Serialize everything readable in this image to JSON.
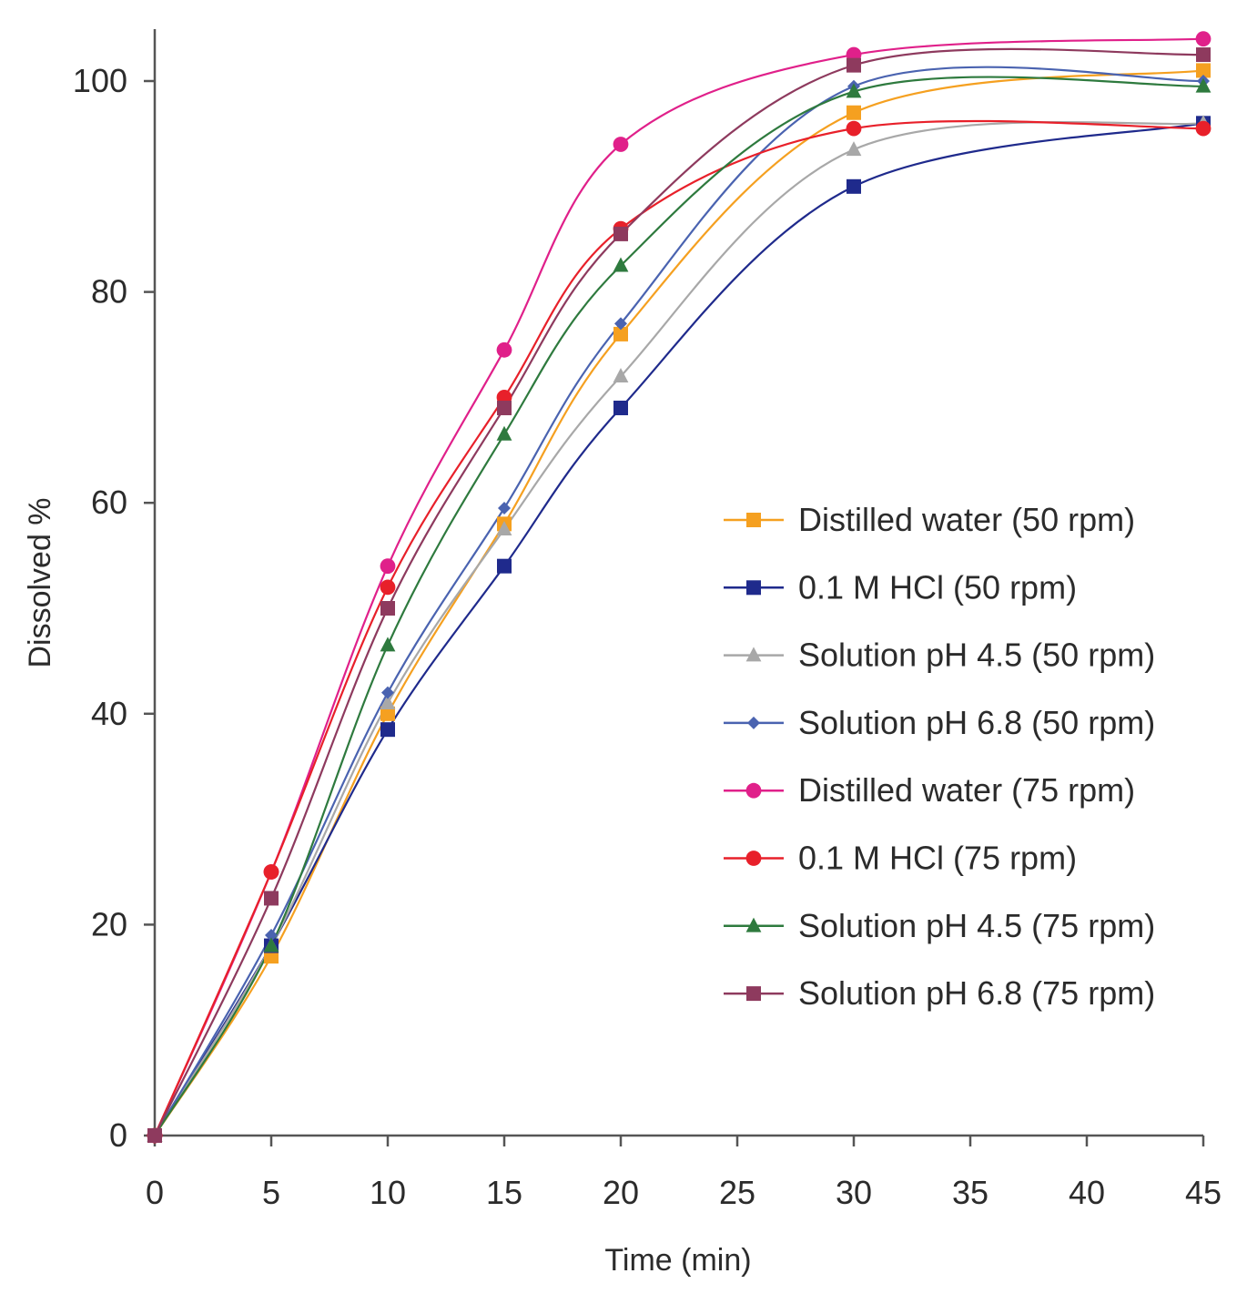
{
  "chart_data": {
    "type": "line",
    "xlabel": "Time (min)",
    "ylabel": "Dissolved %",
    "xlim": [
      0,
      45
    ],
    "ylim": [
      0,
      100
    ],
    "xticks": [
      0,
      5,
      10,
      15,
      20,
      25,
      30,
      35,
      40,
      45
    ],
    "yticks": [
      0,
      20,
      40,
      60,
      80,
      100
    ],
    "grid": false,
    "legend_position": "right",
    "x": [
      0,
      5,
      10,
      15,
      20,
      30,
      45
    ],
    "series": [
      {
        "name": "Distilled water (50 rpm)",
        "color": "#F5A020",
        "marker": "square",
        "values": [
          0,
          17,
          40,
          58,
          76,
          97,
          101
        ]
      },
      {
        "name": "0.1 M HCl (50 rpm)",
        "color": "#1F2A8C",
        "marker": "square",
        "values": [
          0,
          18,
          38.5,
          54,
          69,
          90,
          96
        ]
      },
      {
        "name": "Solution pH 4.5 (50 rpm)",
        "color": "#A8A8A8",
        "marker": "triangle",
        "values": [
          0,
          18,
          41,
          57.5,
          72,
          93.5,
          96
        ]
      },
      {
        "name": "Solution pH 6.8 (50 rpm)",
        "color": "#4A63B0",
        "marker": "diamond",
        "values": [
          0,
          19,
          42,
          59.5,
          77,
          99.5,
          100
        ]
      },
      {
        "name": "Distilled water (75 rpm)",
        "color": "#E0208A",
        "marker": "circle",
        "values": [
          0,
          25,
          54,
          74.5,
          94,
          102.5,
          104
        ]
      },
      {
        "name": "0.1 M HCl (75 rpm)",
        "color": "#E8202A",
        "marker": "circle",
        "values": [
          0,
          25,
          52,
          70,
          86,
          95.5,
          95.5
        ]
      },
      {
        "name": "Solution pH 4.5 (75 rpm)",
        "color": "#2E7A3E",
        "marker": "triangle",
        "values": [
          0,
          18,
          46.5,
          66.5,
          82.5,
          99,
          99.5
        ]
      },
      {
        "name": "Solution pH 6.8 (75 rpm)",
        "color": "#8E3A5E",
        "marker": "square",
        "values": [
          0,
          22.5,
          50,
          69,
          85.5,
          101.5,
          102.5
        ]
      }
    ]
  }
}
